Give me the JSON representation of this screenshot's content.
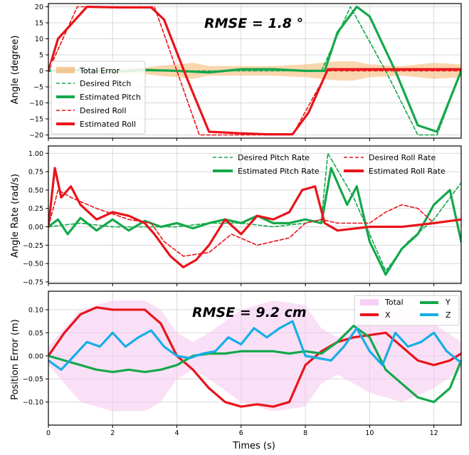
{
  "colors": {
    "red": "#e8141a",
    "green": "#14a84b",
    "blue": "#16aee6",
    "orange": "#f5b46b",
    "pink": "#f5c6f0",
    "grid": "#d8d8d8"
  },
  "xaxis": {
    "label": "Times (s)",
    "ticks": [
      0,
      2,
      4,
      6,
      8,
      10,
      12
    ],
    "xlim": [
      0,
      12.85
    ]
  },
  "chart_data": [
    {
      "type": "line",
      "title": "",
      "annotation": "RMSE = 1.8 °",
      "ylabel": "Angle (degree)",
      "ylim": [
        -21,
        21
      ],
      "yticks": [
        20,
        15,
        10,
        5,
        0,
        -5,
        -10,
        -15,
        -20
      ],
      "legend_position": "lower-left",
      "series": [
        {
          "name": "Total Error",
          "style": "band",
          "x": [
            0,
            1,
            2,
            3,
            3.5,
            4,
            4.5,
            5,
            6,
            7,
            8,
            8.5,
            9,
            9.5,
            10,
            11,
            12,
            12.85
          ],
          "values": [
            0,
            0.5,
            1,
            1,
            1.6,
            2,
            2.5,
            1.5,
            1.5,
            1.5,
            2,
            2.5,
            3,
            3,
            2,
            1.5,
            2.5,
            2
          ]
        },
        {
          "name": "Desired Pitch",
          "style": "dashed",
          "x": [
            0,
            8.5,
            9.4,
            10.5,
            11.5,
            12.1,
            12.85
          ],
          "values": [
            0,
            0,
            20,
            0,
            -20,
            -20,
            0
          ]
        },
        {
          "name": "Estimated Pitch",
          "style": "solid",
          "x": [
            0,
            1,
            2,
            3,
            4,
            5,
            6,
            7,
            8,
            8.6,
            9,
            9.6,
            10,
            10.8,
            11.5,
            12.1,
            12.85
          ],
          "values": [
            0,
            0.3,
            -0.3,
            0.3,
            0,
            -0.5,
            0.5,
            0.5,
            0,
            0,
            12,
            20,
            17,
            0,
            -17,
            -19,
            0
          ]
        },
        {
          "name": "Desired Roll",
          "style": "dashed",
          "x": [
            0,
            0.9,
            3.3,
            4.7,
            7.6,
            8.7,
            12.85
          ],
          "values": [
            0,
            20,
            20,
            -20,
            -20,
            0,
            0
          ]
        },
        {
          "name": "Estimated Roll",
          "style": "solid",
          "x": [
            0,
            0.3,
            1.2,
            2.2,
            3.2,
            3.6,
            4.3,
            5,
            6,
            6.8,
            7.6,
            8.1,
            8.7,
            10,
            11,
            12.85
          ],
          "values": [
            0,
            10,
            20,
            19.8,
            19.8,
            16,
            -2,
            -19,
            -19.5,
            -19.8,
            -19.8,
            -13,
            0.5,
            0.5,
            0.5,
            0.5
          ]
        }
      ]
    },
    {
      "type": "line",
      "ylabel": "Angle Rate (rad/s)",
      "ylim": [
        -0.77,
        1.1
      ],
      "yticks": [
        1.0,
        0.75,
        0.5,
        0.25,
        0.0,
        -0.25,
        -0.5,
        -0.75
      ],
      "yticklabels": [
        "1.00",
        "0.75",
        "0.50",
        "0.25",
        "0.00",
        "−0.25",
        "−0.50",
        "−0.75"
      ],
      "legend_position": "top",
      "series": [
        {
          "name": "Desired Pitch Rate",
          "style": "dashed",
          "x": [
            0,
            1,
            2,
            3,
            4,
            5,
            6,
            7,
            8,
            8.5,
            8.7,
            9.5,
            10,
            10.5,
            11.2,
            12,
            12.85
          ],
          "values": [
            0,
            0.05,
            0,
            0,
            0,
            0.05,
            0.05,
            0,
            0.05,
            0.1,
            1.0,
            0.4,
            -0.1,
            -0.6,
            -0.2,
            0.1,
            0.6
          ]
        },
        {
          "name": "Estimated Pitch Rate",
          "style": "solid",
          "x": [
            0,
            0.3,
            0.6,
            1,
            1.5,
            2,
            2.5,
            3,
            3.5,
            4,
            4.5,
            5,
            5.5,
            6,
            6.5,
            7,
            7.5,
            8,
            8.5,
            8.8,
            9.3,
            9.6,
            10,
            10.5,
            11,
            11.5,
            12,
            12.5,
            12.85
          ],
          "values": [
            0,
            0.1,
            -0.1,
            0.12,
            -0.05,
            0.1,
            -0.05,
            0.08,
            0,
            0.05,
            -0.02,
            0.05,
            0.1,
            0.05,
            0.15,
            0.05,
            0.05,
            0.1,
            0.05,
            0.8,
            0.3,
            0.55,
            -0.2,
            -0.65,
            -0.3,
            -0.1,
            0.3,
            0.5,
            -0.2
          ]
        },
        {
          "name": "Desired Roll Rate",
          "style": "dashed",
          "x": [
            0,
            0.3,
            0.7,
            1.5,
            2.5,
            3.2,
            3.6,
            4.2,
            5,
            5.7,
            6.5,
            7.5,
            8,
            8.5,
            9,
            10,
            10.5,
            11,
            11.5,
            12,
            12.85
          ],
          "values": [
            0,
            0.5,
            0.4,
            0.25,
            0.1,
            0.05,
            -0.2,
            -0.4,
            -0.35,
            -0.1,
            -0.25,
            -0.15,
            0.05,
            0.1,
            0.05,
            0.05,
            0.2,
            0.3,
            0.25,
            0.05,
            0.1
          ]
        },
        {
          "name": "Estimated Roll Rate",
          "style": "solid",
          "x": [
            0,
            0.2,
            0.4,
            0.7,
            1,
            1.5,
            2,
            2.5,
            3,
            3.3,
            3.8,
            4.2,
            4.6,
            5,
            5.5,
            6,
            6.5,
            7,
            7.5,
            7.9,
            8.3,
            8.6,
            9,
            10,
            11,
            12,
            12.85
          ],
          "values": [
            0,
            0.8,
            0.4,
            0.55,
            0.3,
            0.1,
            0.2,
            0.15,
            0.05,
            -0.1,
            -0.4,
            -0.55,
            -0.45,
            -0.25,
            0.1,
            -0.1,
            0.15,
            0.1,
            0.2,
            0.5,
            0.55,
            0.05,
            -0.05,
            0,
            0,
            0.05,
            0.1
          ]
        }
      ]
    },
    {
      "type": "line",
      "annotation": "RMSE = 9.2 cm",
      "ylabel": "Position Error (m)",
      "ylim": [
        -0.15,
        0.14
      ],
      "yticks": [
        0.1,
        0.05,
        0.0,
        -0.05,
        -0.1
      ],
      "yticklabels": [
        "0.10",
        "0.05",
        "0.00",
        "−0.05",
        "−0.10"
      ],
      "legend_position": "top-right",
      "series": [
        {
          "name": "Total",
          "style": "band",
          "x": [
            0,
            1,
            2,
            3,
            3.5,
            4,
            4.5,
            5,
            6,
            7,
            8,
            8.5,
            9,
            10,
            11,
            12,
            12.85
          ],
          "values": [
            0.02,
            0.1,
            0.12,
            0.12,
            0.1,
            0.05,
            0.03,
            0.05,
            0.1,
            0.12,
            0.11,
            0.06,
            0.04,
            0.08,
            0.1,
            0.07,
            0.03
          ]
        },
        {
          "name": "X",
          "style": "solid",
          "x": [
            0,
            0.5,
            1,
            1.5,
            2,
            2.5,
            3,
            3.5,
            4,
            4.5,
            5,
            5.5,
            6,
            6.5,
            7,
            7.5,
            8,
            8.5,
            9,
            9.5,
            10,
            10.5,
            11,
            11.5,
            12,
            12.5,
            12.85
          ],
          "values": [
            0,
            0.05,
            0.09,
            0.105,
            0.1,
            0.1,
            0.1,
            0.07,
            0,
            -0.03,
            -0.07,
            -0.1,
            -0.11,
            -0.105,
            -0.11,
            -0.1,
            -0.02,
            0.01,
            0.03,
            0.04,
            0.045,
            0.05,
            0.02,
            -0.01,
            -0.02,
            -0.01,
            0.005
          ]
        },
        {
          "name": "Y",
          "style": "solid",
          "x": [
            0,
            0.5,
            1,
            1.5,
            2,
            2.5,
            3,
            3.5,
            4,
            4.5,
            5,
            5.5,
            6,
            6.5,
            7,
            7.5,
            8,
            8.5,
            9,
            9.5,
            10,
            10.5,
            11,
            11.5,
            12,
            12.5,
            12.85
          ],
          "values": [
            0,
            -0.01,
            -0.02,
            -0.03,
            -0.035,
            -0.03,
            -0.035,
            -0.03,
            -0.02,
            0,
            0.005,
            0.005,
            0.01,
            0.01,
            0.01,
            0.005,
            0.01,
            0.005,
            0.03,
            0.065,
            0.04,
            -0.03,
            -0.06,
            -0.09,
            -0.1,
            -0.07,
            -0.01
          ]
        },
        {
          "name": "Z",
          "style": "solid",
          "x": [
            0,
            0.4,
            0.8,
            1.2,
            1.6,
            2,
            2.4,
            2.8,
            3.2,
            3.6,
            4,
            4.4,
            4.8,
            5.2,
            5.6,
            6,
            6.4,
            6.8,
            7.2,
            7.6,
            8,
            8.4,
            8.8,
            9.2,
            9.6,
            10,
            10.4,
            10.8,
            11.2,
            11.6,
            12,
            12.4,
            12.85
          ],
          "values": [
            -0.01,
            -0.03,
            0,
            0.03,
            0.02,
            0.05,
            0.02,
            0.04,
            0.055,
            0.02,
            0,
            -0.005,
            0.005,
            0.01,
            0.04,
            0.025,
            0.06,
            0.04,
            0.06,
            0.075,
            0,
            -0.005,
            -0.01,
            0.02,
            0.06,
            0.01,
            -0.02,
            0.05,
            0.02,
            0.03,
            0.05,
            0.01,
            -0.015
          ]
        }
      ]
    }
  ]
}
